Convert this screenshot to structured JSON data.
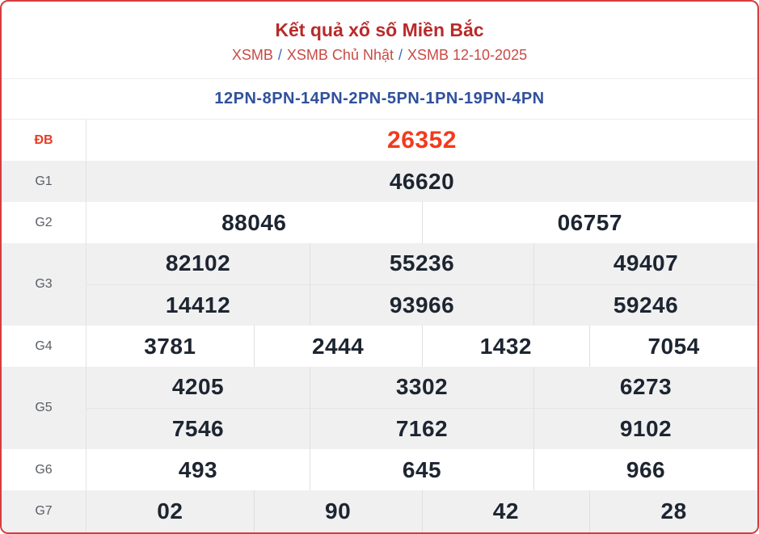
{
  "header": {
    "title": "Kết quả xổ số Miền Bắc",
    "breadcrumb": [
      {
        "label": "XSMB"
      },
      {
        "label": "XSMB Chủ Nhật"
      },
      {
        "label": "XSMB 12-10-2025"
      }
    ],
    "breadcrumb_separator": "/"
  },
  "code_line": "12PN-8PN-14PN-2PN-5PN-1PN-19PN-4PN",
  "colors": {
    "card_border": "#d53d41",
    "title": "#b82b2b",
    "breadcrumb_link": "#c94a44",
    "breadcrumb_separator": "#3b6bc5",
    "code_line": "#30509c",
    "special_prize": "#f23b1c",
    "number": "#1d2531",
    "row_label": "#585d64",
    "striped_row_bg": "#f0f0f0"
  },
  "prize_table": {
    "rows": [
      {
        "label": "ĐB",
        "special": true,
        "lines": [
          [
            "26352"
          ]
        ]
      },
      {
        "label": "G1",
        "special": false,
        "lines": [
          [
            "46620"
          ]
        ]
      },
      {
        "label": "G2",
        "special": false,
        "lines": [
          [
            "88046",
            "06757"
          ]
        ]
      },
      {
        "label": "G3",
        "special": false,
        "lines": [
          [
            "82102",
            "55236",
            "49407"
          ],
          [
            "14412",
            "93966",
            "59246"
          ]
        ]
      },
      {
        "label": "G4",
        "special": false,
        "lines": [
          [
            "3781",
            "2444",
            "1432",
            "7054"
          ]
        ]
      },
      {
        "label": "G5",
        "special": false,
        "lines": [
          [
            "4205",
            "3302",
            "6273"
          ],
          [
            "7546",
            "7162",
            "9102"
          ]
        ]
      },
      {
        "label": "G6",
        "special": false,
        "lines": [
          [
            "493",
            "645",
            "966"
          ]
        ]
      },
      {
        "label": "G7",
        "special": false,
        "lines": [
          [
            "02",
            "90",
            "42",
            "28"
          ]
        ]
      }
    ],
    "single_line_height": 51
  }
}
